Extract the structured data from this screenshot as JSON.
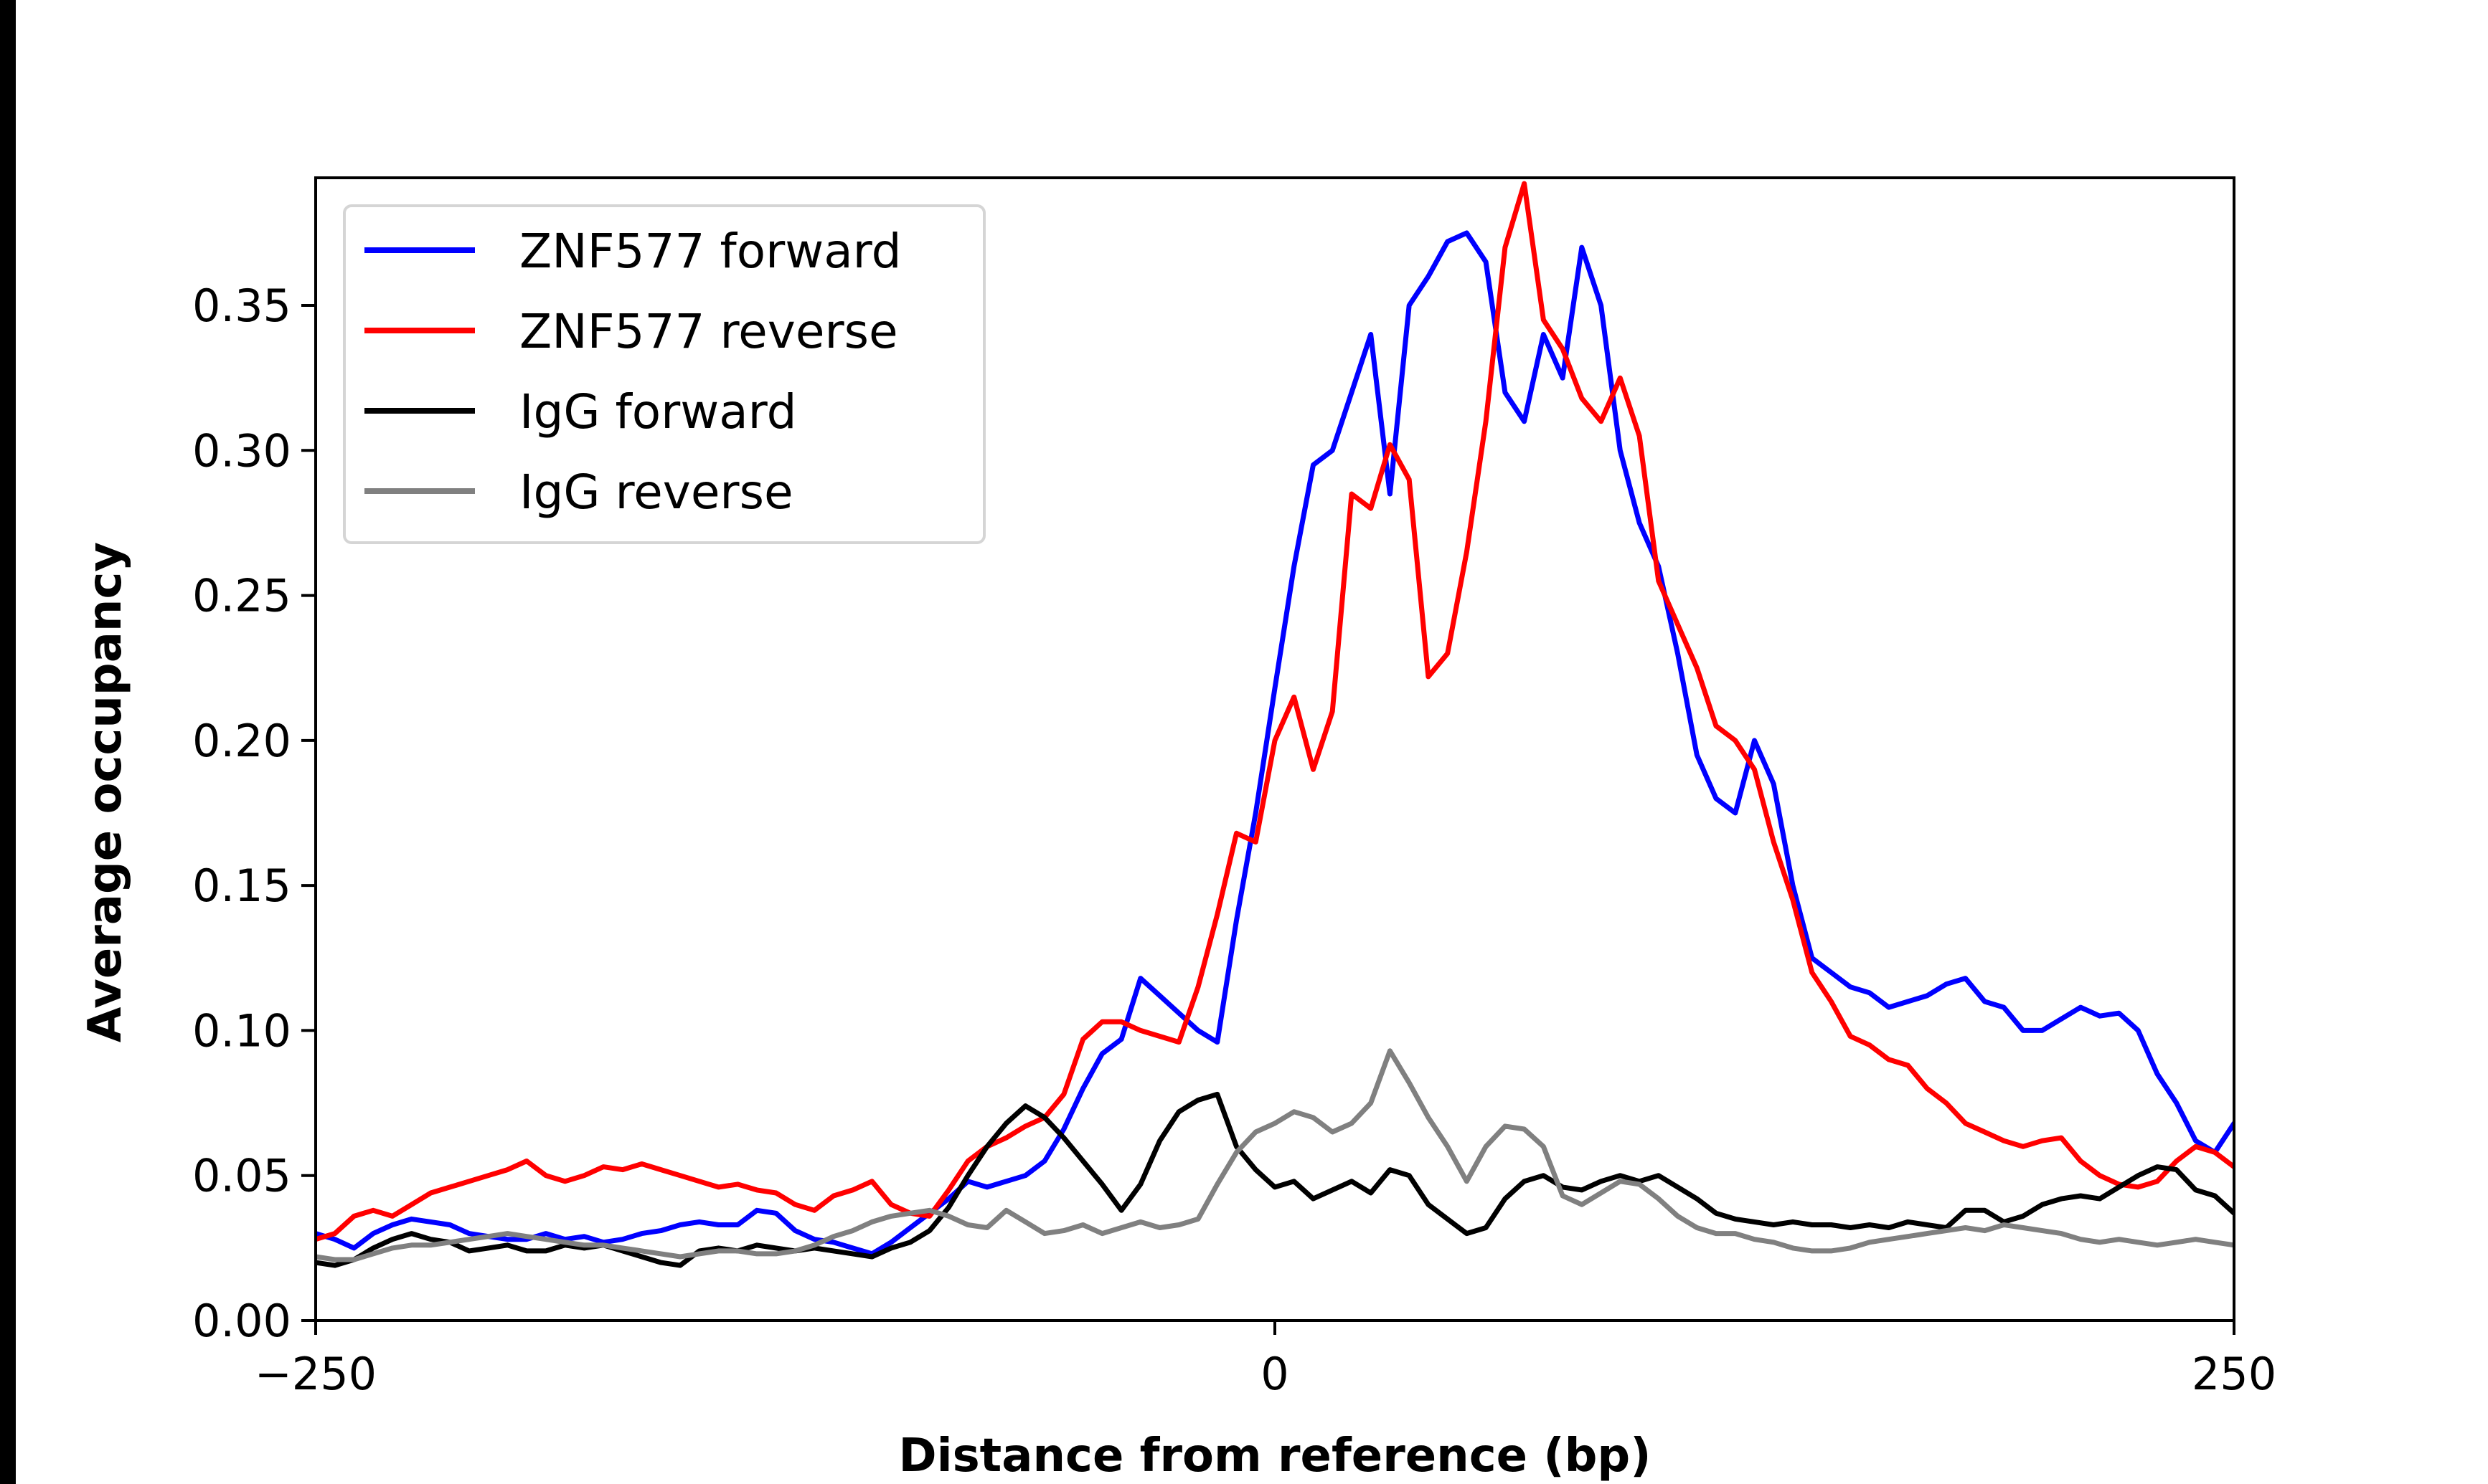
{
  "chart_data": {
    "type": "line",
    "title": "",
    "xlabel": "Distance from reference (bp)",
    "ylabel": "Average occupancy",
    "xlim": [
      -250,
      250
    ],
    "ylim": [
      0,
      0.394
    ],
    "xticks": [
      -250,
      0,
      250
    ],
    "xtick_labels": [
      "−250",
      "0",
      "250"
    ],
    "yticks": [
      0.0,
      0.05,
      0.1,
      0.15,
      0.2,
      0.25,
      0.3,
      0.35
    ],
    "ytick_labels": [
      "0.00",
      "0.05",
      "0.10",
      "0.15",
      "0.20",
      "0.25",
      "0.30",
      "0.35"
    ],
    "grid": false,
    "legend_position": "top-left",
    "x": [
      -250,
      -245,
      -240,
      -235,
      -230,
      -225,
      -220,
      -215,
      -210,
      -205,
      -200,
      -195,
      -190,
      -185,
      -180,
      -175,
      -170,
      -165,
      -160,
      -155,
      -150,
      -145,
      -140,
      -135,
      -130,
      -125,
      -120,
      -115,
      -110,
      -105,
      -100,
      -95,
      -90,
      -85,
      -80,
      -75,
      -70,
      -65,
      -60,
      -55,
      -50,
      -45,
      -40,
      -35,
      -30,
      -25,
      -20,
      -15,
      -10,
      -5,
      0,
      5,
      10,
      15,
      20,
      25,
      30,
      35,
      40,
      45,
      50,
      55,
      60,
      65,
      70,
      75,
      80,
      85,
      90,
      95,
      100,
      105,
      110,
      115,
      120,
      125,
      130,
      135,
      140,
      145,
      150,
      155,
      160,
      165,
      170,
      175,
      180,
      185,
      190,
      195,
      200,
      205,
      210,
      215,
      220,
      225,
      230,
      235,
      240,
      245,
      250
    ],
    "series": [
      {
        "name": "ZNF577 forward",
        "color": "#0000ff",
        "values": [
          0.03,
          0.028,
          0.025,
          0.03,
          0.033,
          0.035,
          0.034,
          0.033,
          0.03,
          0.029,
          0.028,
          0.028,
          0.03,
          0.028,
          0.029,
          0.027,
          0.028,
          0.03,
          0.031,
          0.033,
          0.034,
          0.033,
          0.033,
          0.038,
          0.037,
          0.031,
          0.028,
          0.027,
          0.025,
          0.023,
          0.027,
          0.032,
          0.037,
          0.042,
          0.048,
          0.046,
          0.048,
          0.05,
          0.055,
          0.066,
          0.08,
          0.092,
          0.097,
          0.118,
          0.112,
          0.106,
          0.1,
          0.096,
          0.138,
          0.175,
          0.218,
          0.26,
          0.295,
          0.3,
          0.32,
          0.34,
          0.285,
          0.35,
          0.36,
          0.372,
          0.375,
          0.365,
          0.32,
          0.31,
          0.34,
          0.325,
          0.37,
          0.35,
          0.3,
          0.275,
          0.26,
          0.23,
          0.195,
          0.18,
          0.175,
          0.2,
          0.185,
          0.15,
          0.125,
          0.12,
          0.115,
          0.113,
          0.108,
          0.11,
          0.112,
          0.116,
          0.118,
          0.11,
          0.108,
          0.1,
          0.1,
          0.104,
          0.108,
          0.105,
          0.106,
          0.1,
          0.085,
          0.075,
          0.062,
          0.058,
          0.068
        ]
      },
      {
        "name": "ZNF577 reverse",
        "color": "#ff0000",
        "values": [
          0.028,
          0.03,
          0.036,
          0.038,
          0.036,
          0.04,
          0.044,
          0.046,
          0.048,
          0.05,
          0.052,
          0.055,
          0.05,
          0.048,
          0.05,
          0.053,
          0.052,
          0.054,
          0.052,
          0.05,
          0.048,
          0.046,
          0.047,
          0.045,
          0.044,
          0.04,
          0.038,
          0.043,
          0.045,
          0.048,
          0.04,
          0.037,
          0.036,
          0.045,
          0.055,
          0.06,
          0.063,
          0.067,
          0.07,
          0.078,
          0.097,
          0.103,
          0.103,
          0.1,
          0.098,
          0.096,
          0.115,
          0.14,
          0.168,
          0.165,
          0.2,
          0.215,
          0.19,
          0.21,
          0.285,
          0.28,
          0.302,
          0.29,
          0.222,
          0.23,
          0.265,
          0.31,
          0.37,
          0.392,
          0.345,
          0.335,
          0.318,
          0.31,
          0.325,
          0.305,
          0.255,
          0.24,
          0.225,
          0.205,
          0.2,
          0.19,
          0.165,
          0.145,
          0.12,
          0.11,
          0.098,
          0.095,
          0.09,
          0.088,
          0.08,
          0.075,
          0.068,
          0.065,
          0.062,
          0.06,
          0.062,
          0.063,
          0.055,
          0.05,
          0.047,
          0.046,
          0.048,
          0.055,
          0.06,
          0.058,
          0.053
        ]
      },
      {
        "name": "IgG forward",
        "color": "#000000",
        "values": [
          0.02,
          0.019,
          0.021,
          0.025,
          0.028,
          0.03,
          0.028,
          0.027,
          0.024,
          0.025,
          0.026,
          0.024,
          0.024,
          0.026,
          0.025,
          0.026,
          0.024,
          0.022,
          0.02,
          0.019,
          0.024,
          0.025,
          0.024,
          0.026,
          0.025,
          0.024,
          0.025,
          0.024,
          0.023,
          0.022,
          0.025,
          0.027,
          0.031,
          0.039,
          0.05,
          0.06,
          0.068,
          0.074,
          0.07,
          0.063,
          0.055,
          0.047,
          0.038,
          0.047,
          0.062,
          0.072,
          0.076,
          0.078,
          0.06,
          0.052,
          0.046,
          0.048,
          0.042,
          0.045,
          0.048,
          0.044,
          0.052,
          0.05,
          0.04,
          0.035,
          0.03,
          0.032,
          0.042,
          0.048,
          0.05,
          0.046,
          0.045,
          0.048,
          0.05,
          0.048,
          0.05,
          0.046,
          0.042,
          0.037,
          0.035,
          0.034,
          0.033,
          0.034,
          0.033,
          0.033,
          0.032,
          0.033,
          0.032,
          0.034,
          0.033,
          0.032,
          0.038,
          0.038,
          0.034,
          0.036,
          0.04,
          0.042,
          0.043,
          0.042,
          0.046,
          0.05,
          0.053,
          0.052,
          0.045,
          0.043,
          0.037
        ]
      },
      {
        "name": "IgG reverse",
        "color": "#808080",
        "values": [
          0.022,
          0.021,
          0.021,
          0.023,
          0.025,
          0.026,
          0.026,
          0.027,
          0.028,
          0.029,
          0.03,
          0.029,
          0.028,
          0.027,
          0.026,
          0.026,
          0.025,
          0.024,
          0.023,
          0.022,
          0.023,
          0.024,
          0.024,
          0.023,
          0.023,
          0.024,
          0.026,
          0.029,
          0.031,
          0.034,
          0.036,
          0.037,
          0.038,
          0.036,
          0.033,
          0.032,
          0.038,
          0.034,
          0.03,
          0.031,
          0.033,
          0.03,
          0.032,
          0.034,
          0.032,
          0.033,
          0.035,
          0.047,
          0.058,
          0.065,
          0.068,
          0.072,
          0.07,
          0.065,
          0.068,
          0.075,
          0.093,
          0.082,
          0.07,
          0.06,
          0.048,
          0.06,
          0.067,
          0.066,
          0.06,
          0.043,
          0.04,
          0.044,
          0.048,
          0.047,
          0.042,
          0.036,
          0.032,
          0.03,
          0.03,
          0.028,
          0.027,
          0.025,
          0.024,
          0.024,
          0.025,
          0.027,
          0.028,
          0.029,
          0.03,
          0.031,
          0.032,
          0.031,
          0.033,
          0.032,
          0.031,
          0.03,
          0.028,
          0.027,
          0.028,
          0.027,
          0.026,
          0.027,
          0.028,
          0.027,
          0.026
        ]
      }
    ]
  }
}
